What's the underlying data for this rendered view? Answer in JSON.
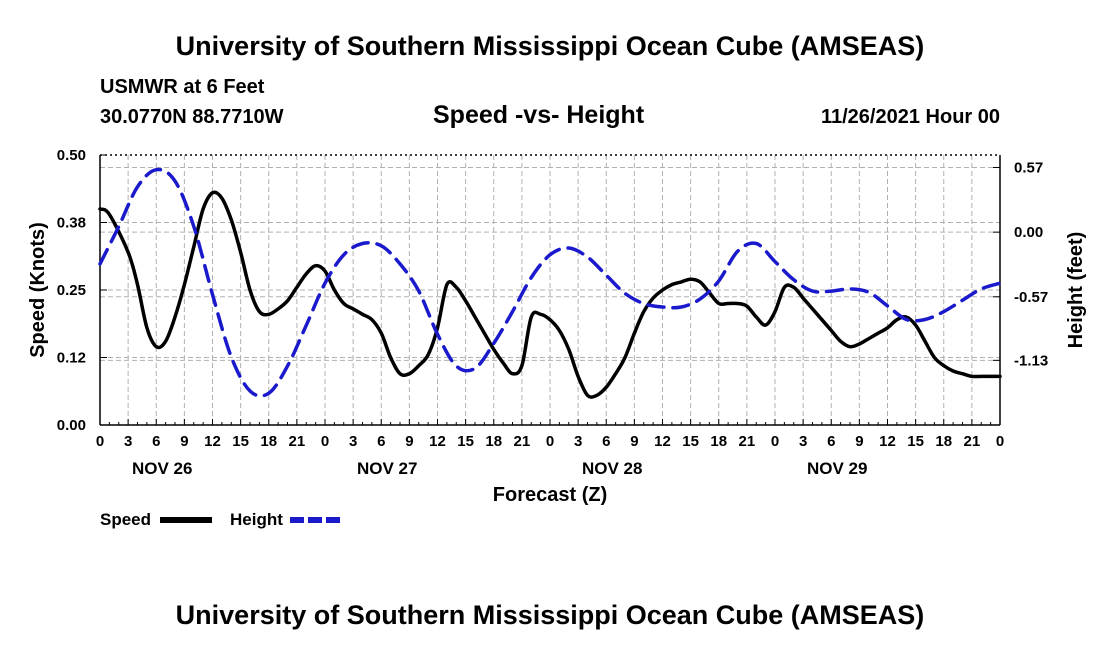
{
  "header": {
    "title": "University of Southern Mississippi Ocean Cube (AMSEAS)",
    "station": "USMWR at 6 Feet",
    "coords": "30.0770N  88.7710W",
    "plot_title": "Speed -vs- Height",
    "datetime": "11/26/2021 Hour 00"
  },
  "footer": {
    "title": "University of Southern Mississippi Ocean Cube (AMSEAS)"
  },
  "legend": {
    "speed": "Speed",
    "height": "Height"
  },
  "chart_data": {
    "type": "line",
    "title": "Speed -vs- Height",
    "xlabel": "Forecast (Z)",
    "ylabel_left": "Speed (Knots)",
    "ylabel_right": "Height (feet)",
    "x_range_hours": [
      0,
      96
    ],
    "left_ylim": [
      0,
      0.5
    ],
    "right_ylim": [
      -1.7,
      0.68
    ],
    "left_ticks": [
      "0.00",
      "0.12",
      "0.25",
      "0.38",
      "0.50"
    ],
    "left_tick_values": [
      0,
      0.125,
      0.25,
      0.375,
      0.5
    ],
    "right_ticks": [
      "0.57",
      "0.00",
      "-0.57",
      "-1.13"
    ],
    "right_tick_values": [
      0.57,
      0.0,
      -0.57,
      -1.13
    ],
    "x_tick_labels": [
      "0",
      "3",
      "6",
      "9",
      "12",
      "15",
      "18",
      "21",
      "0",
      "3",
      "6",
      "9",
      "12",
      "15",
      "18",
      "21",
      "0",
      "3",
      "6",
      "9",
      "12",
      "15",
      "18",
      "21",
      "0",
      "3",
      "6",
      "9",
      "12",
      "15",
      "18",
      "21",
      "0"
    ],
    "date_labels": [
      {
        "label": "NOV 26",
        "hour": 6
      },
      {
        "label": "NOV 27",
        "hour": 30
      },
      {
        "label": "NOV 28",
        "hour": 54
      },
      {
        "label": "NOV 29",
        "hour": 78
      }
    ],
    "grid": true,
    "series": [
      {
        "name": "Speed",
        "axis": "left",
        "color": "#000000",
        "x": [
          0,
          1,
          3,
          4,
          5,
          6,
          7,
          8,
          9,
          10,
          11,
          12,
          13,
          14,
          15,
          16,
          17,
          18,
          19,
          20,
          21,
          22,
          23,
          24,
          25,
          26,
          27,
          28,
          29,
          30,
          31,
          32,
          33,
          34,
          35,
          36,
          37,
          38,
          39,
          40,
          41,
          42,
          43,
          44,
          45,
          46,
          47,
          48,
          49,
          50,
          51,
          52,
          53,
          54,
          55,
          56,
          57,
          58,
          59,
          60,
          61,
          62,
          63,
          64,
          65,
          66,
          67,
          68,
          69,
          70,
          71,
          72,
          73,
          74,
          75,
          76,
          77,
          78,
          79,
          80,
          81,
          82,
          83,
          84,
          85,
          86,
          87,
          88,
          89,
          90,
          91,
          92,
          93,
          94,
          95,
          96
        ],
        "values": [
          0.4,
          0.39,
          0.32,
          0.26,
          0.18,
          0.145,
          0.155,
          0.2,
          0.26,
          0.33,
          0.4,
          0.43,
          0.42,
          0.38,
          0.32,
          0.25,
          0.21,
          0.205,
          0.215,
          0.23,
          0.255,
          0.28,
          0.295,
          0.285,
          0.25,
          0.225,
          0.215,
          0.205,
          0.195,
          0.17,
          0.125,
          0.095,
          0.095,
          0.11,
          0.13,
          0.18,
          0.26,
          0.255,
          0.23,
          0.2,
          0.17,
          0.14,
          0.115,
          0.095,
          0.11,
          0.2,
          0.205,
          0.195,
          0.175,
          0.14,
          0.09,
          0.055,
          0.055,
          0.07,
          0.095,
          0.125,
          0.17,
          0.21,
          0.235,
          0.25,
          0.26,
          0.265,
          0.27,
          0.265,
          0.245,
          0.225,
          0.225,
          0.225,
          0.22,
          0.2,
          0.185,
          0.21,
          0.255,
          0.255,
          0.235,
          0.215,
          0.195,
          0.175,
          0.155,
          0.145,
          0.15,
          0.16,
          0.17,
          0.18,
          0.195,
          0.2,
          0.185,
          0.155,
          0.125,
          0.11,
          0.1,
          0.095,
          0.09,
          0.09,
          0.09,
          0.09
        ]
      },
      {
        "name": "Height",
        "axis": "right",
        "color": "#1a1acc",
        "x": [
          0,
          2,
          4,
          6,
          8,
          10,
          12,
          14,
          16,
          18,
          20,
          22,
          24,
          26,
          28,
          30,
          32,
          34,
          36,
          38,
          40,
          42,
          44,
          46,
          48,
          50,
          52,
          54,
          56,
          58,
          60,
          62,
          64,
          66,
          68,
          70,
          72,
          74,
          76,
          78,
          80,
          82,
          84,
          86,
          88,
          90,
          92,
          94,
          96
        ],
        "values": [
          -0.28,
          0.05,
          0.4,
          0.55,
          0.45,
          0.05,
          -0.55,
          -1.1,
          -1.4,
          -1.42,
          -1.18,
          -0.82,
          -0.45,
          -0.2,
          -0.1,
          -0.12,
          -0.28,
          -0.52,
          -0.9,
          -1.18,
          -1.2,
          -0.98,
          -0.7,
          -0.4,
          -0.2,
          -0.14,
          -0.22,
          -0.38,
          -0.54,
          -0.63,
          -0.66,
          -0.66,
          -0.59,
          -0.43,
          -0.17,
          -0.1,
          -0.26,
          -0.42,
          -0.52,
          -0.52,
          -0.5,
          -0.53,
          -0.65,
          -0.77,
          -0.77,
          -0.7,
          -0.6,
          -0.5,
          -0.45
        ]
      }
    ]
  }
}
